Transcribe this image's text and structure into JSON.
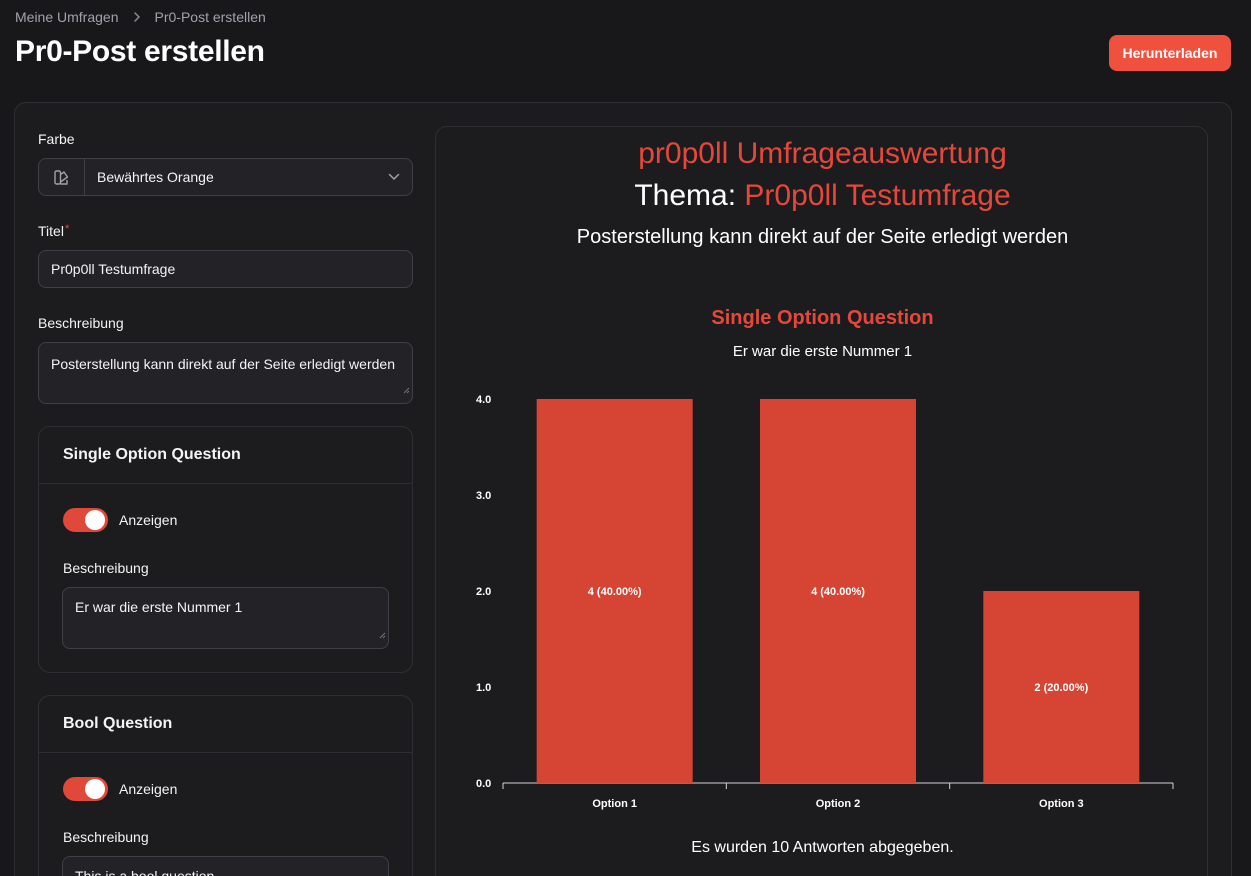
{
  "breadcrumb": {
    "parent": "Meine Umfragen",
    "current": "Pr0-Post erstellen"
  },
  "page": {
    "title": "Pr0-Post erstellen",
    "download_label": "Herunterladen"
  },
  "form": {
    "color_label": "Farbe",
    "color_value": "Bewährtes Orange",
    "title_label": "Titel",
    "title_required_mark": "*",
    "title_value": "Pr0p0ll Testumfrage",
    "description_label": "Beschreibung",
    "description_value": "Posterstellung kann direkt auf der Seite erledigt werden"
  },
  "sections": [
    {
      "title": "Single Option Question",
      "toggle_label": "Anzeigen",
      "toggle_on": true,
      "desc_label": "Beschreibung",
      "desc_value": "Er war die erste Nummer 1"
    },
    {
      "title": "Bool Question",
      "toggle_label": "Anzeigen",
      "toggle_on": true,
      "desc_label": "Beschreibung",
      "desc_value": "This is a bool question"
    }
  ],
  "poster": {
    "title": "pr0p0ll Umfrageauswertung",
    "topic_prefix": "Thema:",
    "topic_value": "Pr0p0ll Testumfrage",
    "description": "Posterstellung kann direkt auf der Seite erledigt werden",
    "question_title": "Single Option Question",
    "question_desc": "Er war die erste Nummer 1",
    "answers_note": "Es wurden 10 Antworten abgegeben."
  },
  "colors": {
    "accent": "#e5483a",
    "bar": "#d64433",
    "button": "#f0513f"
  },
  "chart_data": {
    "type": "bar",
    "categories": [
      "Option 1",
      "Option 2",
      "Option 3"
    ],
    "values": [
      4,
      4,
      2
    ],
    "data_labels": [
      "4 (40.00%)",
      "4 (40.00%)",
      "2 (20.00%)"
    ],
    "yticks": [
      "0.0",
      "1.0",
      "2.0",
      "3.0",
      "4.0"
    ],
    "ylim": [
      0,
      4
    ],
    "grid": false
  }
}
